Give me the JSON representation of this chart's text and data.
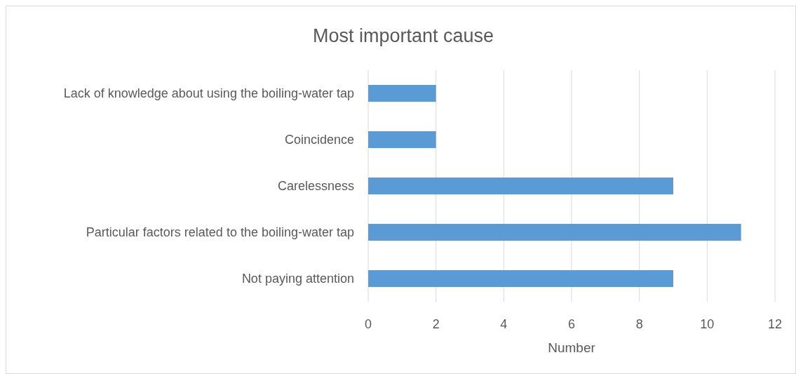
{
  "chart_data": {
    "type": "bar",
    "orientation": "horizontal",
    "title": "Most important cause",
    "xlabel": "Number",
    "categories": [
      "Lack of knowledge about using the boiling-water tap",
      "Coincidence",
      "Carelessness",
      "Particular factors related to the boiling-water tap",
      "Not paying attention"
    ],
    "values": [
      2,
      2,
      9,
      11,
      9
    ],
    "color": "#5b9bd5",
    "xlim": [
      0,
      12
    ],
    "xticks": [
      0,
      2,
      4,
      6,
      8,
      10,
      12
    ],
    "grid": "x"
  }
}
